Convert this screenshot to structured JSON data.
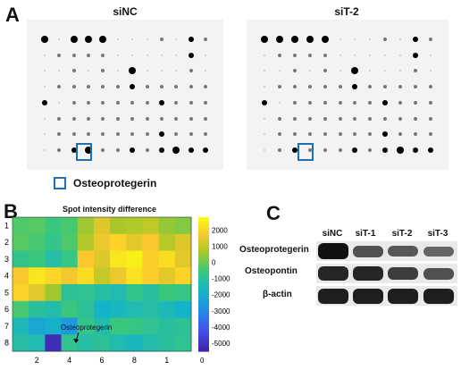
{
  "panels": {
    "a_letter": "A",
    "b_letter": "B",
    "c_letter": "C"
  },
  "panel_a": {
    "left_title": "siNC",
    "right_title": "siT-2",
    "legend_label": "Osteoprotegerin",
    "highlight_color": "#1f6fb3"
  },
  "panel_b": {
    "title": "Spot intensity difference",
    "annotation": "Osteoprotegerin",
    "x_ticks": [
      "2",
      "4",
      "6",
      "8",
      "1"
    ],
    "y_ticks": [
      "1",
      "2",
      "3",
      "4",
      "5",
      "6",
      "7",
      "8"
    ],
    "colorbar_ticks": [
      "2000",
      "1000",
      "0",
      "-1000",
      "-2000",
      "-3000",
      "-4000",
      "-5000"
    ],
    "colorbar_bottom_tick": "0"
  },
  "panel_c": {
    "columns": [
      "siNC",
      "siT-1",
      "siT-2",
      "siT-3"
    ],
    "rows": [
      "Osteoprotegerin",
      "Osteopontin",
      "β-actin"
    ]
  },
  "chart_data": {
    "type": "heatmap",
    "title": "Spot intensity difference",
    "x_tick_labels": [
      "2",
      "4",
      "6",
      "8",
      "1"
    ],
    "y_tick_labels": [
      "1",
      "2",
      "3",
      "4",
      "5",
      "6",
      "7",
      "8"
    ],
    "colorbar_range": [
      -5500,
      2800
    ],
    "values": [
      [
        -300,
        -200,
        -600,
        -400,
        600,
        1400,
        700,
        800,
        1000,
        500,
        300
      ],
      [
        -200,
        -400,
        -800,
        -300,
        800,
        1600,
        2000,
        1500,
        1800,
        900,
        1400
      ],
      [
        -800,
        -600,
        -1200,
        -700,
        1800,
        1400,
        2400,
        2600,
        1900,
        2200,
        1500
      ],
      [
        1800,
        2400,
        2100,
        1700,
        2200,
        1100,
        1600,
        2300,
        1900,
        1500,
        2000
      ],
      [
        2000,
        1500,
        600,
        -1000,
        -900,
        -1200,
        -1400,
        -800,
        -1100,
        -600,
        -700
      ],
      [
        -400,
        -1100,
        -1300,
        -600,
        -1000,
        -1800,
        -1600,
        -1400,
        -1200,
        -1500,
        -1800
      ],
      [
        -1500,
        -2200,
        -1900,
        -2600,
        -800,
        -1300,
        -600,
        -700,
        -900,
        -1100,
        -1000
      ],
      [
        -1200,
        -1400,
        -5300,
        -900,
        -1200,
        -1000,
        -1400,
        -1600,
        -1300,
        -1100,
        -900
      ]
    ],
    "highlighted_cell": {
      "row": 8,
      "label": "Osteoprotegerin"
    }
  },
  "blot_columns_data": {
    "array_rows": 8,
    "array_cols": 12,
    "left_spots": [
      [
        3,
        0,
        3,
        3,
        3,
        0,
        0,
        0,
        1,
        0,
        2,
        1
      ],
      [
        0,
        1,
        1,
        1,
        1,
        0,
        0,
        0,
        0,
        0,
        2,
        0
      ],
      [
        0,
        0,
        1,
        0,
        1,
        0,
        3,
        0,
        0,
        0,
        1,
        0
      ],
      [
        0,
        1,
        1,
        1,
        1,
        1,
        2,
        1,
        1,
        1,
        1,
        1
      ],
      [
        2,
        0,
        1,
        1,
        1,
        1,
        1,
        1,
        2,
        1,
        1,
        1
      ],
      [
        0,
        1,
        1,
        1,
        1,
        1,
        1,
        1,
        1,
        1,
        1,
        1
      ],
      [
        0,
        1,
        1,
        1,
        1,
        1,
        1,
        1,
        2,
        1,
        1,
        1
      ],
      [
        0,
        1,
        2,
        3,
        1,
        1,
        2,
        1,
        2,
        3,
        2,
        2
      ]
    ],
    "right_spots": [
      [
        3,
        3,
        3,
        3,
        3,
        0,
        0,
        0,
        1,
        0,
        2,
        1
      ],
      [
        0,
        1,
        1,
        1,
        1,
        0,
        0,
        0,
        0,
        0,
        2,
        0
      ],
      [
        0,
        0,
        1,
        0,
        1,
        0,
        3,
        0,
        0,
        0,
        1,
        0
      ],
      [
        0,
        1,
        1,
        1,
        1,
        1,
        2,
        1,
        1,
        1,
        1,
        1
      ],
      [
        2,
        0,
        1,
        1,
        1,
        1,
        1,
        1,
        2,
        1,
        1,
        1
      ],
      [
        0,
        1,
        1,
        1,
        1,
        1,
        1,
        1,
        1,
        1,
        1,
        1
      ],
      [
        0,
        1,
        1,
        1,
        1,
        1,
        1,
        1,
        2,
        1,
        1,
        1
      ],
      [
        0,
        1,
        2,
        1,
        1,
        1,
        2,
        1,
        2,
        3,
        2,
        2
      ]
    ]
  },
  "western_blot": {
    "bands": [
      [
        1.0,
        0.55,
        0.5,
        0.4
      ],
      [
        0.85,
        0.85,
        0.7,
        0.55
      ],
      [
        0.9,
        0.9,
        0.9,
        0.9
      ]
    ]
  }
}
